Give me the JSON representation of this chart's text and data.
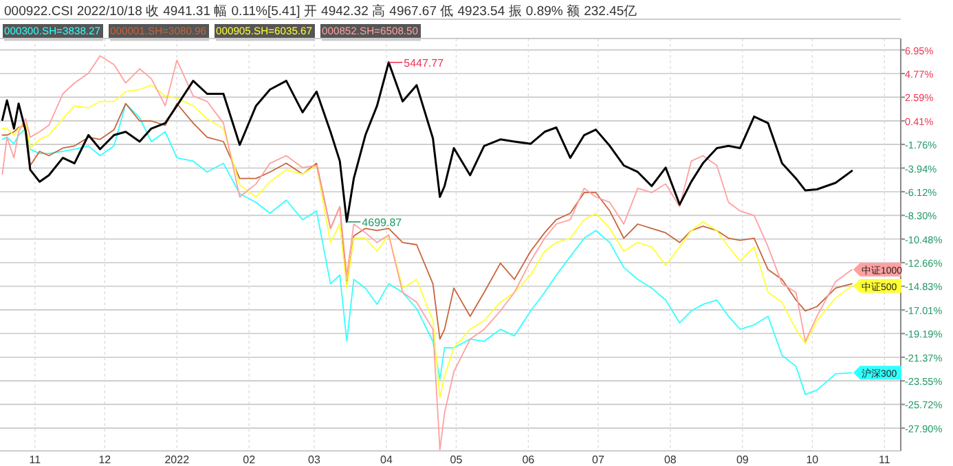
{
  "chart_data": {
    "type": "line",
    "title": "000922.CSI 2022/10/18  收 4941.31  幅 0.11%[5.41]  开 4942.32  高 4967.67  低 4923.54  振 0.89%  额 232.45亿",
    "x": [
      "2021-10-18",
      "2021-10-20",
      "2021-10-23",
      "2021-10-25",
      "2021-10-28",
      "2021-10-30",
      "2021-11-03",
      "2021-11-07",
      "2021-11-13",
      "2021-11-18",
      "2021-11-24",
      "2021-11-29",
      "2021-12-05",
      "2021-12-10",
      "2021-12-16",
      "2021-12-21",
      "2021-12-27",
      "2022-01-01",
      "2022-01-08",
      "2022-01-14",
      "2022-01-21",
      "2022-01-28",
      "2022-02-04",
      "2022-02-10",
      "2022-02-17",
      "2022-02-24",
      "2022-03-02",
      "2022-03-08",
      "2022-03-12",
      "2022-03-15",
      "2022-03-18",
      "2022-03-23",
      "2022-03-28",
      "2022-04-02",
      "2022-04-08",
      "2022-04-14",
      "2022-04-21",
      "2022-04-24",
      "2022-04-26",
      "2022-04-30",
      "2022-05-07",
      "2022-05-13",
      "2022-05-20",
      "2022-05-26",
      "2022-06-02",
      "2022-06-08",
      "2022-06-13",
      "2022-06-19",
      "2022-06-25",
      "2022-06-30",
      "2022-07-06",
      "2022-07-12",
      "2022-07-18",
      "2022-07-24",
      "2022-07-30",
      "2022-08-05",
      "2022-08-10",
      "2022-08-15",
      "2022-08-21",
      "2022-08-26",
      "2022-08-31",
      "2022-09-06",
      "2022-09-12",
      "2022-09-18",
      "2022-09-24",
      "2022-09-28",
      "2022-10-03",
      "2022-10-11",
      "2022-10-18"
    ],
    "series": [
      {
        "name": "000300.SH=3838.27",
        "color": "#33ffff",
        "values": [
          -1.3,
          -1.1,
          -1.7,
          -0.9,
          -0.3,
          -2.2,
          -2.6,
          -2.6,
          -2.4,
          -2.2,
          -1.9,
          -2.8,
          -1.9,
          2.0,
          0.7,
          -1.5,
          -0.6,
          -3.0,
          -3.3,
          -4.3,
          -3.5,
          -6.3,
          -7.1,
          -8.1,
          -6.9,
          -8.7,
          -7.9,
          -14.6,
          -13.8,
          -19.9,
          -14.2,
          -15.0,
          -16.5,
          -14.6,
          -15.4,
          -16.9,
          -19.9,
          -23.4,
          -20.5,
          -20.5,
          -19.7,
          -19.9,
          -18.8,
          -19.4,
          -17.1,
          -15.4,
          -13.8,
          -12.1,
          -10.4,
          -9.7,
          -10.8,
          -13.1,
          -14.2,
          -15.0,
          -16.1,
          -18.2,
          -17.1,
          -16.5,
          -16.1,
          -17.6,
          -18.8,
          -18.4,
          -17.6,
          -21.2,
          -22.2,
          -24.8,
          -24.4,
          -22.9,
          -22.8
        ]
      },
      {
        "name": "000001.SH=3080.96",
        "color": "#c8643c",
        "values": [
          -0.9,
          -0.9,
          -0.6,
          -0.2,
          0.0,
          -3.7,
          -2.4,
          -2.8,
          -2.1,
          -1.9,
          -1.1,
          -1.3,
          -0.4,
          2.0,
          0.4,
          0.4,
          0.0,
          2.0,
          0.2,
          -1.1,
          -1.5,
          -4.9,
          -4.9,
          -4.3,
          -3.5,
          -4.5,
          -3.5,
          -9.5,
          -7.5,
          -14.8,
          -10.2,
          -9.5,
          -9.7,
          -9.5,
          -10.8,
          -11.0,
          -14.6,
          -19.7,
          -18.8,
          -15.0,
          -17.6,
          -15.4,
          -12.7,
          -14.2,
          -11.6,
          -9.9,
          -8.7,
          -8.1,
          -6.2,
          -6.2,
          -7.9,
          -10.4,
          -9.1,
          -9.5,
          -9.9,
          -10.8,
          -9.7,
          -9.3,
          -9.7,
          -10.4,
          -10.6,
          -10.4,
          -13.3,
          -14.2,
          -16.1,
          -17.1,
          -16.7,
          -15.0,
          -14.6
        ]
      },
      {
        "name": "000905.SH=6035.67",
        "color": "#ffff33",
        "values": [
          -0.3,
          -0.3,
          -0.9,
          -0.3,
          0.2,
          -2.1,
          -1.3,
          -0.9,
          0.6,
          1.8,
          1.6,
          2.2,
          2.2,
          3.1,
          3.3,
          3.7,
          2.7,
          2.5,
          1.8,
          0.6,
          -0.3,
          -5.5,
          -6.6,
          -5.2,
          -4.1,
          -4.5,
          -3.7,
          -10.8,
          -9.1,
          -15.0,
          -10.4,
          -10.4,
          -11.6,
          -10.1,
          -15.0,
          -14.2,
          -18.0,
          -25.1,
          -23.1,
          -20.5,
          -18.8,
          -18.0,
          -16.3,
          -15.4,
          -13.8,
          -11.6,
          -10.8,
          -10.4,
          -8.7,
          -8.1,
          -9.5,
          -11.6,
          -10.8,
          -11.2,
          -12.9,
          -11.2,
          -9.7,
          -8.9,
          -9.7,
          -11.2,
          -12.5,
          -11.2,
          -15.4,
          -16.3,
          -18.8,
          -20.1,
          -18.0,
          -15.9,
          -14.8
        ]
      },
      {
        "name": "000852.SH=6508.50",
        "color": "#ffa0a0",
        "values": [
          -4.5,
          -1.1,
          -3.0,
          -0.6,
          0.6,
          -1.1,
          -0.6,
          0.0,
          2.9,
          3.9,
          4.8,
          6.4,
          5.6,
          3.9,
          5.2,
          4.3,
          1.8,
          6.0,
          2.7,
          2.2,
          0.2,
          -6.6,
          -5.4,
          -3.5,
          -2.8,
          -3.9,
          -3.7,
          -9.5,
          -7.5,
          -13.8,
          -9.1,
          -9.9,
          -10.8,
          -10.1,
          -15.4,
          -16.3,
          -18.8,
          -29.9,
          -26.5,
          -22.7,
          -19.7,
          -18.8,
          -17.1,
          -15.4,
          -12.5,
          -10.4,
          -9.1,
          -8.7,
          -5.8,
          -6.6,
          -7.1,
          -9.1,
          -5.8,
          -6.2,
          -5.4,
          -7.5,
          -3.3,
          -2.8,
          -3.7,
          -7.1,
          -7.9,
          -8.3,
          -11.2,
          -14.6,
          -15.4,
          -19.9,
          -17.6,
          -14.4,
          -13.3
        ]
      },
      {
        "color": "#000000",
        "values": [
          0.5,
          2.3,
          -0.3,
          2.0,
          -0.5,
          -4.1,
          -5.2,
          -4.6,
          -3.0,
          -3.5,
          -0.9,
          -2.2,
          -0.9,
          -0.6,
          -1.5,
          -0.3,
          0.2,
          1.8,
          4.1,
          2.9,
          2.9,
          -1.8,
          1.8,
          3.3,
          4.1,
          1.2,
          3.1,
          -0.6,
          -3.3,
          -8.9,
          -4.9,
          -0.9,
          1.8,
          5.8,
          2.2,
          3.7,
          -1.2,
          -6.6,
          -5.6,
          -2.1,
          -4.6,
          -1.9,
          -1.3,
          -1.5,
          -1.7,
          -0.6,
          -0.2,
          -3.0,
          -0.9,
          -0.4,
          -1.9,
          -3.7,
          -4.3,
          -5.6,
          -3.9,
          -7.3,
          -5.2,
          -3.5,
          -2.1,
          -1.9,
          -2.1,
          0.8,
          0.2,
          -3.5,
          -4.9,
          -6.0,
          -5.9,
          -5.3,
          -4.2
        ]
      }
    ],
    "annotations": [
      {
        "text": "5447.77",
        "x": "2022-04-02",
        "y": 5.8
      },
      {
        "text": "4699.87",
        "x": "2022-03-15",
        "y": -8.9
      },
      {
        "text": "中证1000",
        "x": "2022-10-18",
        "y": -13.3
      },
      {
        "text": "中证500",
        "x": "2022-10-18",
        "y": -14.8
      },
      {
        "text": "沪深300",
        "x": "2022-10-18",
        "y": -22.8
      }
    ],
    "xlim": [
      "2021-10-17",
      "2022-11-08"
    ],
    "xticks": [
      {
        "value": "2021-11-01",
        "label": "11"
      },
      {
        "value": "2021-12-01",
        "label": "12"
      },
      {
        "value": "2022-01-01",
        "label": "2022"
      },
      {
        "value": "2022-02-01",
        "label": "02"
      },
      {
        "value": "2022-03-01",
        "label": "03"
      },
      {
        "value": "2022-04-01",
        "label": "04"
      },
      {
        "value": "2022-05-01",
        "label": "05"
      },
      {
        "value": "2022-06-01",
        "label": "06"
      },
      {
        "value": "2022-07-01",
        "label": "07"
      },
      {
        "value": "2022-08-01",
        "label": "08"
      },
      {
        "value": "2022-09-01",
        "label": "09"
      },
      {
        "value": "2022-10-01",
        "label": "10"
      },
      {
        "value": "2022-11-01",
        "label": "11"
      }
    ],
    "ylim": [
      -30.0,
      8.0
    ],
    "yticks": [
      {
        "value": 6.95,
        "label": "6.95%"
      },
      {
        "value": 4.77,
        "label": "4.77%"
      },
      {
        "value": 2.59,
        "label": "2.59%"
      },
      {
        "value": 0.41,
        "label": "0.41%"
      },
      {
        "value": -1.76,
        "label": "-1.76%"
      },
      {
        "value": -3.94,
        "label": "-3.94%"
      },
      {
        "value": -6.12,
        "label": "-6.12%"
      },
      {
        "value": -8.3,
        "label": "-8.30%"
      },
      {
        "value": -10.48,
        "label": "-10.48%"
      },
      {
        "value": -12.66,
        "label": "-12.66%"
      },
      {
        "value": -14.83,
        "label": "-14.83%"
      },
      {
        "value": -17.01,
        "label": "-17.01%"
      },
      {
        "value": -19.19,
        "label": "-19.19%"
      },
      {
        "value": -21.37,
        "label": "-21.37%"
      },
      {
        "value": -23.55,
        "label": "-23.55%"
      },
      {
        "value": -25.72,
        "label": "-25.72%"
      },
      {
        "value": -27.9,
        "label": "-27.90%"
      }
    ],
    "grid": true,
    "legend": "top left",
    "marker": "none",
    "line_style": "solid"
  }
}
